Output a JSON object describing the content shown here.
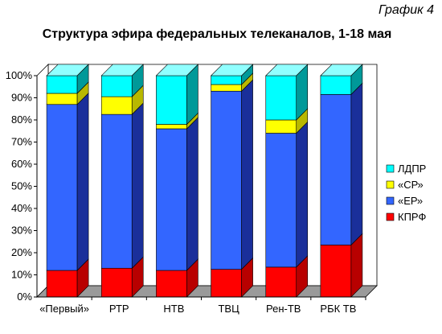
{
  "figure_label": "График 4",
  "chart_data": {
    "type": "bar",
    "stacked": true,
    "three_d": true,
    "title": "Структура эфира федеральных телеканалов, 1-18 мая",
    "xlabel": "",
    "ylabel": "",
    "ylim": [
      0,
      100
    ],
    "y_ticks": [
      "0%",
      "10%",
      "20%",
      "30%",
      "40%",
      "50%",
      "60%",
      "70%",
      "80%",
      "90%",
      "100%"
    ],
    "categories": [
      "«Первый»",
      "РТР",
      "НТВ",
      "ТВЦ",
      "Рен-ТВ",
      "РБК ТВ"
    ],
    "series": [
      {
        "name": "КПРФ",
        "color": "#ff0000",
        "side": "#b80000",
        "top": "#ff6060",
        "values": [
          12,
          13,
          12,
          12.5,
          13.5,
          23.5
        ]
      },
      {
        "name": "«ЕР»",
        "color": "#3366ff",
        "side": "#1a2f9a",
        "top": "#7f9cff",
        "values": [
          75,
          69.5,
          64,
          80.5,
          60.5,
          68
        ]
      },
      {
        "name": "«СР»",
        "color": "#ffff00",
        "side": "#b8b800",
        "top": "#ffff90",
        "values": [
          5,
          8,
          2,
          3,
          6,
          0
        ]
      },
      {
        "name": "ЛДПР",
        "color": "#00ffff",
        "side": "#009999",
        "top": "#90ffff",
        "values": [
          8,
          9.5,
          22,
          4,
          20,
          8.5
        ]
      }
    ],
    "legend_position": "right",
    "grid": false
  }
}
